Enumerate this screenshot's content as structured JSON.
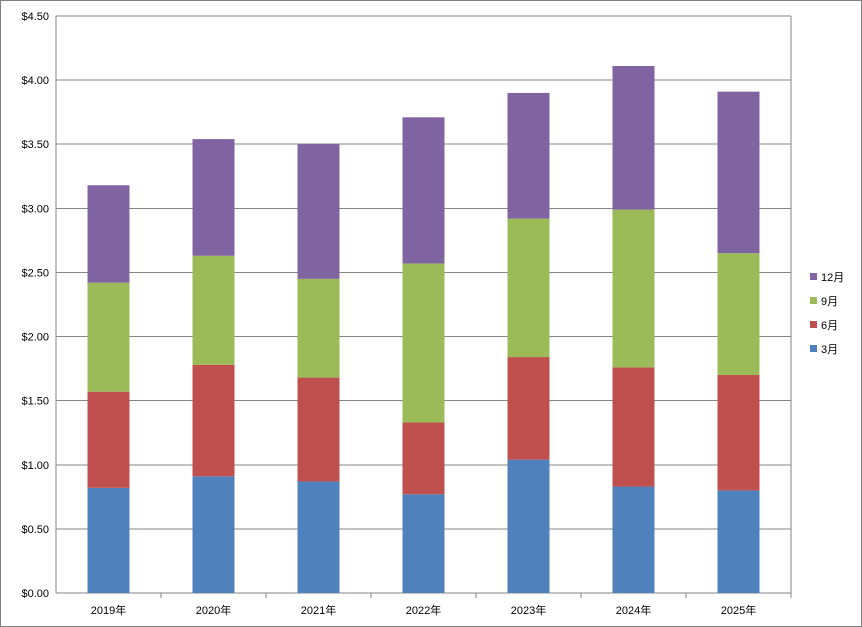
{
  "chart_data": {
    "type": "bar",
    "stacked": true,
    "title": "",
    "xlabel": "",
    "ylabel": "",
    "categories": [
      "2019年",
      "2020年",
      "2021年",
      "2022年",
      "2023年",
      "2024年",
      "2025年"
    ],
    "ylim": [
      0,
      4.5
    ],
    "yticks": [
      "$0.00",
      "$0.50",
      "$1.00",
      "$1.50",
      "$2.00",
      "$2.50",
      "$3.00",
      "$3.50",
      "$4.00",
      "$4.50"
    ],
    "grid": true,
    "legend_position": "right",
    "series": [
      {
        "name": "3月",
        "color": "#4f81bd",
        "values": [
          0.82,
          0.91,
          0.87,
          0.77,
          1.04,
          0.83,
          0.8
        ]
      },
      {
        "name": "6月",
        "color": "#c0504d",
        "values": [
          0.75,
          0.87,
          0.81,
          0.56,
          0.8,
          0.93,
          0.9
        ]
      },
      {
        "name": "9月",
        "color": "#9bbb59",
        "values": [
          0.85,
          0.85,
          0.77,
          1.24,
          1.08,
          1.23,
          0.95
        ]
      },
      {
        "name": "12月",
        "color": "#8064a2",
        "values": [
          0.76,
          0.91,
          1.05,
          1.14,
          0.98,
          1.12,
          1.26
        ]
      }
    ]
  }
}
